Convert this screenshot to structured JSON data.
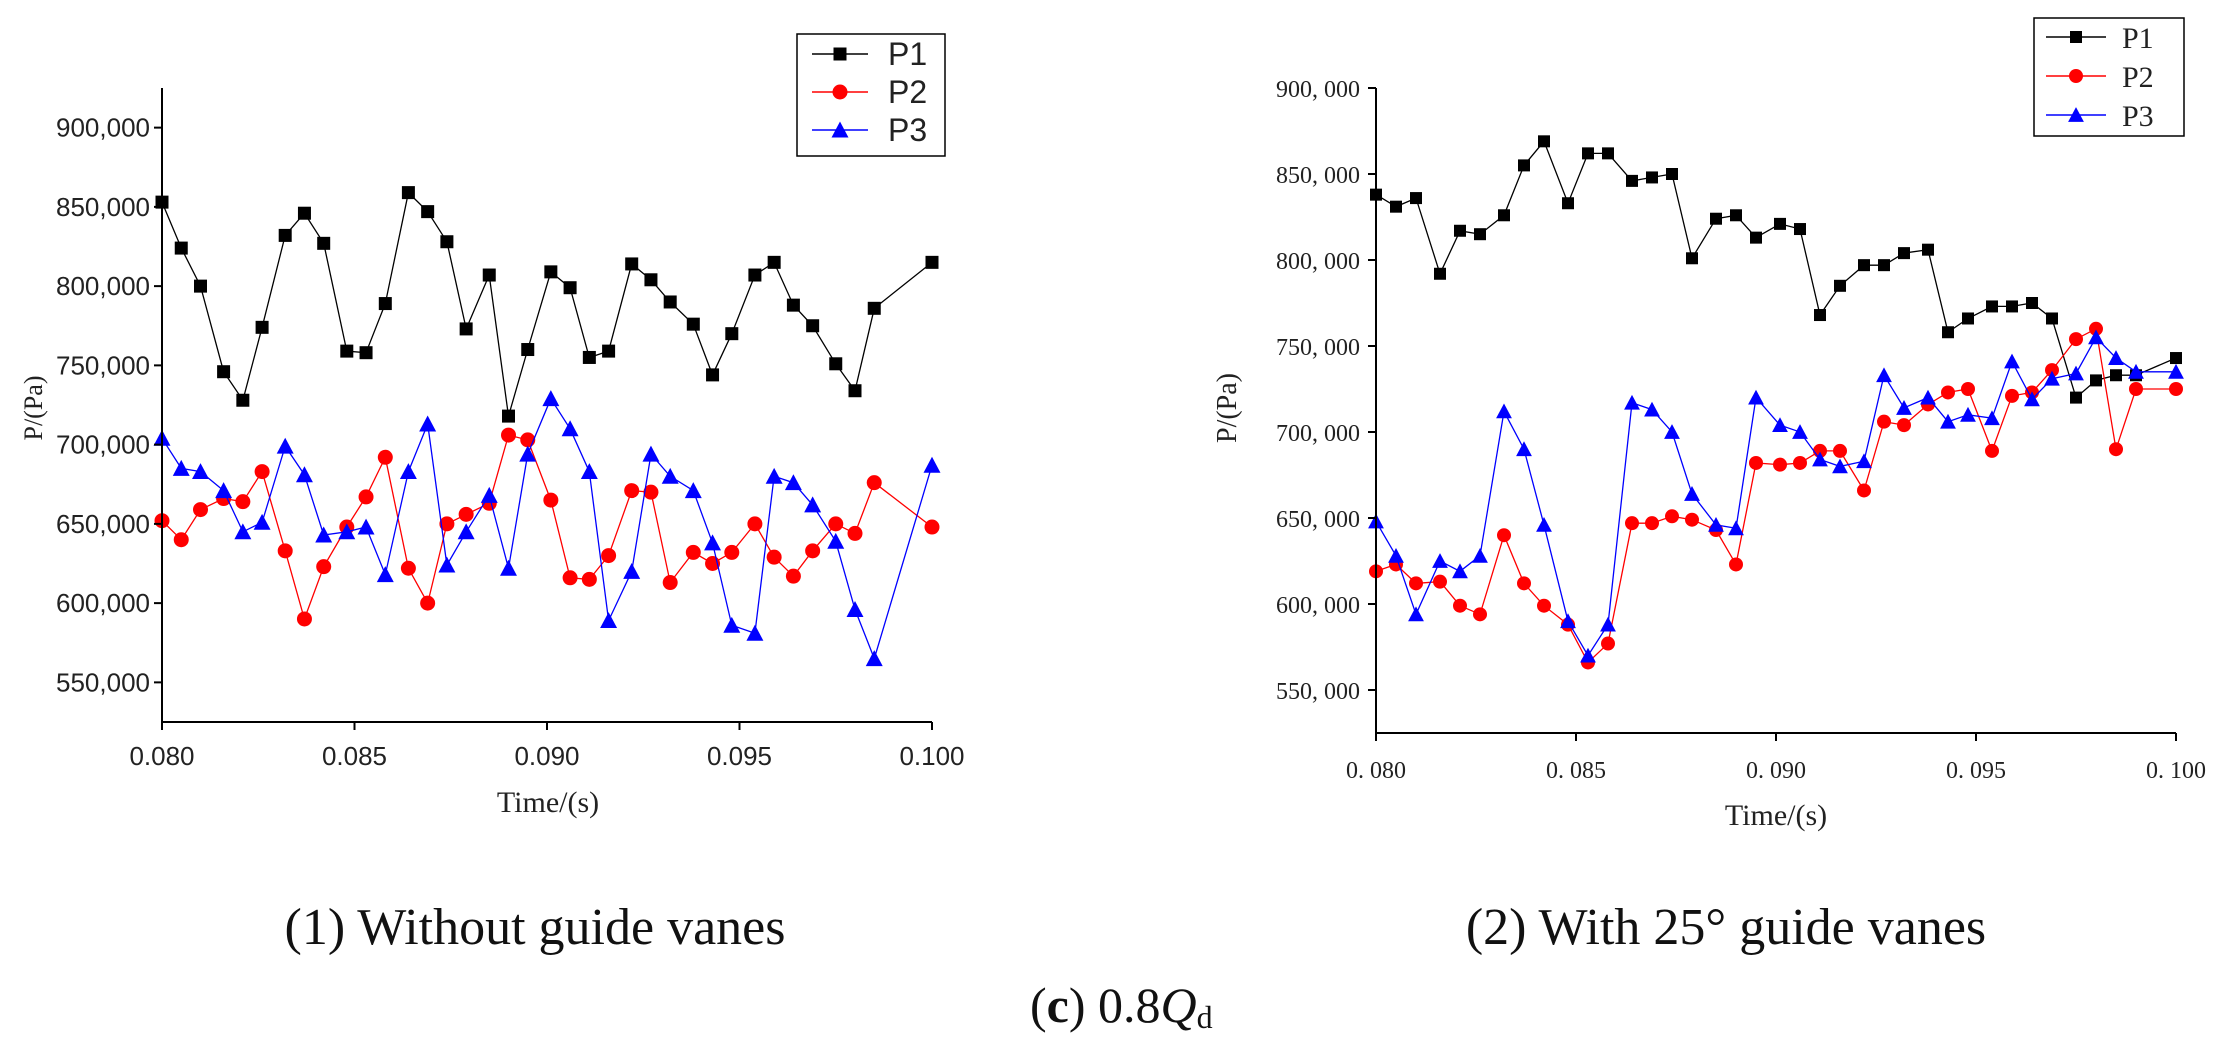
{
  "figure": {
    "label_letter": "c",
    "label_coeff": "0.8",
    "label_var": "Q",
    "label_sub": "d",
    "caption_left": "(1) Without guide vanes",
    "caption_right": "(2) With 25° guide vanes"
  },
  "colors": {
    "P1": "#000000",
    "P2": "#ff0000",
    "P3": "#0000ff"
  },
  "chart_data": [
    {
      "type": "line",
      "title": "",
      "xlabel": "Time/(s)",
      "ylabel": "P/(Pa)",
      "xlim": [
        0.08,
        0.1
      ],
      "ylim": [
        525000,
        925000
      ],
      "xticks": [
        0.08,
        0.085,
        0.09,
        0.095,
        0.1
      ],
      "xtick_labels": [
        "0.080",
        "0.085",
        "0.090",
        "0.095",
        "0.100"
      ],
      "yticks": [
        550000,
        600000,
        650000,
        700000,
        750000,
        800000,
        850000,
        900000
      ],
      "ytick_labels": [
        "550,000",
        "600,000",
        "650,000",
        "700,000",
        "750,000",
        "800,000",
        "850,000",
        "900,000"
      ],
      "legend": "top-right",
      "grid": false,
      "x": [
        0.08,
        0.0805,
        0.081,
        0.0816,
        0.0821,
        0.0826,
        0.0832,
        0.0837,
        0.0842,
        0.0848,
        0.0853,
        0.0858,
        0.0864,
        0.0869,
        0.0874,
        0.0879,
        0.0885,
        0.089,
        0.0895,
        0.0901,
        0.0906,
        0.0911,
        0.0916,
        0.0922,
        0.0927,
        0.0932,
        0.0938,
        0.0943,
        0.0948,
        0.0954,
        0.0959,
        0.0964,
        0.0969,
        0.0975,
        0.098,
        0.0985,
        0.1
      ],
      "series": [
        {
          "name": "P1",
          "marker": "square",
          "values": [
            853000,
            824000,
            800000,
            746000,
            728000,
            774000,
            832000,
            846000,
            827000,
            759000,
            758000,
            789000,
            859000,
            847000,
            828000,
            773000,
            807000,
            718000,
            760000,
            809000,
            799000,
            755000,
            759000,
            814000,
            804000,
            790000,
            776000,
            744000,
            770000,
            807000,
            815000,
            788000,
            775000,
            751000,
            734000,
            786000,
            815000
          ]
        },
        {
          "name": "P2",
          "marker": "circle",
          "values": [
            652000,
            640000,
            659000,
            666000,
            664000,
            683000,
            633000,
            590000,
            623000,
            648000,
            667000,
            692000,
            622000,
            600000,
            650000,
            656000,
            663000,
            706000,
            703000,
            665000,
            616000,
            615000,
            630000,
            671000,
            670000,
            613000,
            632000,
            625000,
            632000,
            650000,
            629000,
            617000,
            633000,
            650000,
            644000,
            676000,
            648000
          ]
        },
        {
          "name": "P3",
          "marker": "triangle",
          "values": [
            704000,
            685000,
            683000,
            671000,
            645000,
            651000,
            699000,
            681000,
            643000,
            645000,
            648000,
            618000,
            683000,
            713000,
            624000,
            645000,
            668000,
            622000,
            694000,
            729000,
            710000,
            683000,
            589000,
            620000,
            694000,
            680000,
            671000,
            638000,
            586000,
            581000,
            680000,
            676000,
            662000,
            639000,
            596000,
            565000,
            687000
          ]
        }
      ]
    },
    {
      "type": "line",
      "title": "",
      "xlabel": "Time/(s)",
      "ylabel": "P/(Pa)",
      "xlim": [
        0.08,
        0.1
      ],
      "ylim": [
        525000,
        900000
      ],
      "xticks": [
        0.08,
        0.085,
        0.09,
        0.095,
        0.1
      ],
      "xtick_labels": [
        "0. 080",
        "0. 085",
        "0. 090",
        "0. 095",
        "0. 100"
      ],
      "yticks": [
        550000,
        600000,
        650000,
        700000,
        750000,
        800000,
        850000,
        900000
      ],
      "ytick_labels": [
        "550, 000",
        "600, 000",
        "650, 000",
        "700, 000",
        "750, 000",
        "800, 000",
        "850, 000",
        "900, 000"
      ],
      "legend": "top-right",
      "grid": false,
      "x": [
        0.08,
        0.0805,
        0.081,
        0.0816,
        0.0821,
        0.0826,
        0.0832,
        0.0837,
        0.0842,
        0.0848,
        0.0853,
        0.0858,
        0.0864,
        0.0869,
        0.0874,
        0.0879,
        0.0885,
        0.089,
        0.0895,
        0.0901,
        0.0906,
        0.0911,
        0.0916,
        0.0922,
        0.0927,
        0.0932,
        0.0938,
        0.0943,
        0.0948,
        0.0954,
        0.0959,
        0.0964,
        0.0969,
        0.0975,
        0.098,
        0.0985,
        0.099,
        0.1
      ],
      "series": [
        {
          "name": "P1",
          "marker": "square",
          "values": [
            838000,
            831000,
            836000,
            792000,
            817000,
            815000,
            826000,
            855000,
            869000,
            833000,
            862000,
            862000,
            846000,
            848000,
            850000,
            801000,
            824000,
            826000,
            813000,
            821000,
            818000,
            768000,
            785000,
            797000,
            797000,
            804000,
            806000,
            758000,
            766000,
            773000,
            773000,
            775000,
            766000,
            720000,
            730000,
            733000,
            733000,
            743000
          ]
        },
        {
          "name": "P2",
          "marker": "circle",
          "values": [
            619000,
            623000,
            612000,
            613000,
            599000,
            594000,
            640000,
            612000,
            599000,
            588000,
            566000,
            577000,
            647000,
            647000,
            651000,
            649000,
            643000,
            623000,
            682000,
            681000,
            682000,
            689000,
            689000,
            666000,
            706000,
            704000,
            716000,
            723000,
            725000,
            689000,
            721000,
            723000,
            736000,
            754000,
            760000,
            690000,
            725000,
            725000
          ]
        },
        {
          "name": "P3",
          "marker": "triangle",
          "values": [
            648000,
            628000,
            594000,
            625000,
            619000,
            628000,
            712000,
            690000,
            646000,
            590000,
            570000,
            588000,
            717000,
            713000,
            700000,
            664000,
            646000,
            644000,
            720000,
            704000,
            700000,
            684000,
            680000,
            683000,
            733000,
            714000,
            720000,
            706000,
            710000,
            708000,
            741000,
            719000,
            731000,
            734000,
            755000,
            743000,
            735000,
            735000
          ]
        }
      ]
    }
  ]
}
